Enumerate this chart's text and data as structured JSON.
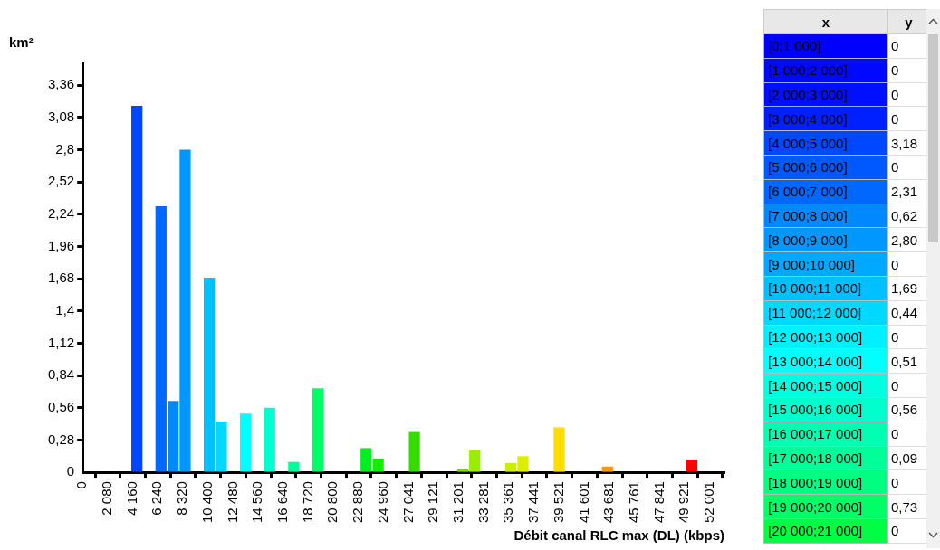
{
  "chart_data": [
    {
      "type": "histogram",
      "ylabel": "km²",
      "xlabel": "Débit canal RLC max (DL) (kbps)",
      "bins": [
        0,
        1000,
        2000,
        3000,
        4000,
        5000,
        6000,
        7000,
        8000,
        9000,
        10000,
        11000,
        12000,
        13000,
        14000,
        15000,
        16000,
        17000,
        18000,
        19000,
        20000,
        21000,
        22000,
        23000,
        24000,
        25000,
        26000,
        27000,
        28000,
        29000,
        30000,
        31000,
        32000,
        33000,
        34000,
        35000,
        36000,
        37000,
        38000,
        39000,
        40000,
        41000,
        42000,
        43000,
        44000,
        45000,
        46000,
        47000,
        48000,
        49000,
        50000,
        51000,
        52000
      ],
      "values": [
        0,
        0,
        0,
        0,
        3.18,
        0,
        2.31,
        0.62,
        2.8,
        0,
        1.69,
        0.44,
        0,
        0.51,
        0,
        0.56,
        0,
        0.09,
        0,
        0.73,
        0,
        0,
        0,
        0.21,
        0.12,
        0,
        0,
        0.35,
        0,
        0,
        0,
        0.03,
        0.19,
        0,
        0,
        0.08,
        0.14,
        0,
        0,
        0.39,
        0,
        0,
        0,
        0.05,
        0,
        0,
        0,
        0,
        0,
        0,
        0.11,
        0
      ],
      "colors": [
        "#0000ff",
        "#0008ff",
        "#0010ff",
        "#0020ff",
        "#0048ff",
        "#0058ff",
        "#0068ff",
        "#0088ff",
        "#0098ff",
        "#00a8ff",
        "#00c0ff",
        "#00d8ff",
        "#00f0ff",
        "#00ffff",
        "#00ffe0",
        "#00ffcc",
        "#00ffb0",
        "#00ff99",
        "#00ff80",
        "#00ff66",
        "#00ff44",
        "#00ff30",
        "#00ff20",
        "#00ee22",
        "#11ee00",
        "#22e800",
        "#2ee000",
        "#33dd00",
        "#44dd00",
        "#55dd00",
        "#66dd00",
        "#77dd00",
        "#99ee00",
        "#aaee00",
        "#bbee00",
        "#ccee00",
        "#ddee00",
        "#eee800",
        "#f8e000",
        "#ffdd00",
        "#ffcc00",
        "#ffbb00",
        "#ffaa00",
        "#ff9900",
        "#ff8800",
        "#ff7700",
        "#ff6600",
        "#ff5500",
        "#ff4400",
        "#ff2200",
        "#ff0000",
        "#ee0000"
      ],
      "xlim": [
        0,
        53200
      ],
      "ylim": [
        0,
        3.55
      ],
      "xticks": [
        0,
        {
          "value": 2080,
          "label": "2 080"
        },
        {
          "value": 4160,
          "label": "4 160"
        },
        {
          "value": 6240,
          "label": "6 240"
        },
        {
          "value": 8320,
          "label": "8 320"
        },
        {
          "value": 10400,
          "label": "10 400"
        },
        {
          "value": 12480,
          "label": "12 480"
        },
        {
          "value": 14560,
          "label": "14 560"
        },
        {
          "value": 16640,
          "label": "16 640"
        },
        {
          "value": 18720,
          "label": "18 720"
        },
        {
          "value": 20800,
          "label": "20 800"
        },
        {
          "value": 22880,
          "label": "22 880"
        },
        {
          "value": 24960,
          "label": "24 960"
        },
        {
          "value": 27041,
          "label": "27 041"
        },
        {
          "value": 29121,
          "label": "29 121"
        },
        {
          "value": 31201,
          "label": "31 201"
        },
        {
          "value": 33281,
          "label": "33 281"
        },
        {
          "value": 35361,
          "label": "35 361"
        },
        {
          "value": 37441,
          "label": "37 441"
        },
        {
          "value": 39521,
          "label": "39 521"
        },
        {
          "value": 41601,
          "label": "41 601"
        },
        {
          "value": 43681,
          "label": "43 681"
        },
        {
          "value": 45761,
          "label": "45 761"
        },
        {
          "value": 47841,
          "label": "47 841"
        },
        {
          "value": 49921,
          "label": "49 921"
        },
        {
          "value": 52001,
          "label": "52 001"
        }
      ],
      "yticks": [
        0,
        {
          "value": 0.28,
          "label": "0,28"
        },
        {
          "value": 0.56,
          "label": "0,56"
        },
        {
          "value": 0.84,
          "label": "0,84"
        },
        {
          "value": 1.12,
          "label": "1,12"
        },
        {
          "value": 1.4,
          "label": "1,4"
        },
        {
          "value": 1.68,
          "label": "1,68"
        },
        {
          "value": 1.96,
          "label": "1,96"
        },
        {
          "value": 2.24,
          "label": "2,24"
        },
        {
          "value": 2.52,
          "label": "2,52"
        },
        {
          "value": 2.8,
          "label": "2,8"
        },
        {
          "value": 3.08,
          "label": "3,08"
        },
        {
          "value": 3.36,
          "label": "3,36"
        }
      ]
    },
    {
      "type": "other",
      "xlabel": "x",
      "ylabel": "y",
      "categories": [
        "[0;1 000]",
        "[1 000;2 000]",
        "[2 000;3 000]",
        "[3 000;4 000]",
        "[4 000;5 000]",
        "[5 000;6 000]",
        "[6 000;7 000]",
        "[7 000;8 000]",
        "[8 000;9 000]",
        "[9 000;10 000]",
        "[10 000;11 000]",
        "[11 000;12 000]",
        "[12 000;13 000]",
        "[13 000;14 000]",
        "[14 000;15 000]",
        "[15 000;16 000]",
        "[16 000;17 000]",
        "[17 000;18 000]",
        "[18 000;19 000]",
        "[19 000;20 000]",
        "[20 000;21 000]"
      ],
      "value_labels": [
        "0",
        "0",
        "0",
        "0",
        "3,18",
        "0",
        "2,31",
        "0,62",
        "2,80",
        "0",
        "1,69",
        "0,44",
        "0",
        "0,51",
        "0",
        "0,56",
        "0",
        "0,09",
        "0",
        "0,73",
        "0"
      ],
      "colors": [
        "#0000ff",
        "#0008ff",
        "#0010ff",
        "#0020ff",
        "#0048ff",
        "#0058ff",
        "#0068ff",
        "#0088ff",
        "#0098ff",
        "#00a8ff",
        "#00c0ff",
        "#00d8ff",
        "#00f0ff",
        "#00ffff",
        "#00ffe0",
        "#00ffcc",
        "#00ffb0",
        "#00ff99",
        "#00ff80",
        "#00ff66",
        "#00ff44"
      ]
    }
  ]
}
